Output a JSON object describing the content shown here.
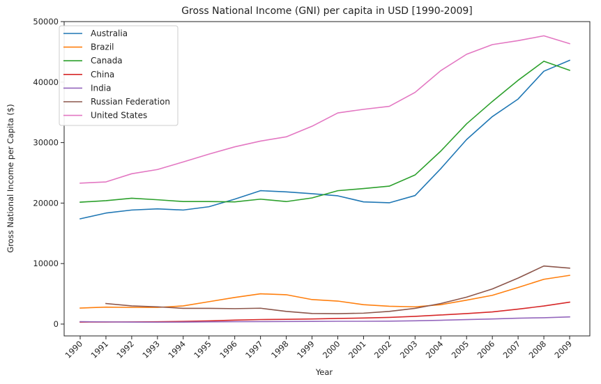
{
  "chart_data": {
    "type": "line",
    "title": "Gross National Income (GNI) per capita in USD [1990-2009]",
    "xlabel": "Year",
    "ylabel": "Gross National Income per Capita ($)",
    "ylim": [
      0,
      50000
    ],
    "yticks": [
      0,
      10000,
      20000,
      30000,
      40000,
      50000
    ],
    "grid": false,
    "legend_position": "top-left",
    "categories": [
      "1990",
      "1991",
      "1992",
      "1993",
      "1994",
      "1995",
      "1996",
      "1997",
      "1998",
      "1999",
      "2000",
      "2001",
      "2002",
      "2003",
      "2004",
      "2005",
      "2006",
      "2007",
      "2008",
      "2009"
    ],
    "series": [
      {
        "name": "Australia",
        "color": "#1f77b4",
        "values": [
          17400,
          18350,
          18850,
          19050,
          18850,
          19400,
          20650,
          22050,
          21850,
          21550,
          21200,
          20200,
          20050,
          21250,
          25700,
          30500,
          34300,
          37200,
          41800,
          43600
        ]
      },
      {
        "name": "Brazil",
        "color": "#ff7f0e",
        "values": [
          2650,
          2800,
          2750,
          2750,
          3000,
          3700,
          4400,
          5000,
          4850,
          4050,
          3800,
          3200,
          2950,
          2850,
          3200,
          3950,
          4750,
          6050,
          7400,
          8050
        ]
      },
      {
        "name": "Canada",
        "color": "#2ca02c",
        "values": [
          20150,
          20400,
          20800,
          20550,
          20250,
          20250,
          20200,
          20650,
          20250,
          20850,
          22050,
          22400,
          22800,
          24650,
          28600,
          33100,
          36800,
          40300,
          43450,
          41950
        ]
      },
      {
        "name": "China",
        "color": "#d62728",
        "values": [
          330,
          340,
          360,
          380,
          440,
          530,
          650,
          750,
          790,
          840,
          930,
          1000,
          1100,
          1270,
          1500,
          1740,
          2010,
          2470,
          2990,
          3620
        ]
      },
      {
        "name": "India",
        "color": "#9467bd",
        "values": [
          390,
          360,
          330,
          310,
          320,
          370,
          400,
          410,
          420,
          440,
          460,
          460,
          480,
          540,
          630,
          740,
          840,
          970,
          1050,
          1180
        ]
      },
      {
        "name": "Russian Federation",
        "color": "#8c564b",
        "values": [
          null,
          3400,
          3000,
          2850,
          2600,
          2600,
          2550,
          2620,
          2100,
          1750,
          1720,
          1800,
          2100,
          2600,
          3400,
          4450,
          5800,
          7600,
          9600,
          9250
        ]
      },
      {
        "name": "United States",
        "color": "#e377c2",
        "values": [
          23300,
          23500,
          24850,
          25550,
          26800,
          28100,
          29300,
          30250,
          30950,
          32700,
          34900,
          35500,
          36000,
          38300,
          41900,
          44600,
          46200,
          46850,
          47650,
          46350
        ]
      }
    ]
  }
}
